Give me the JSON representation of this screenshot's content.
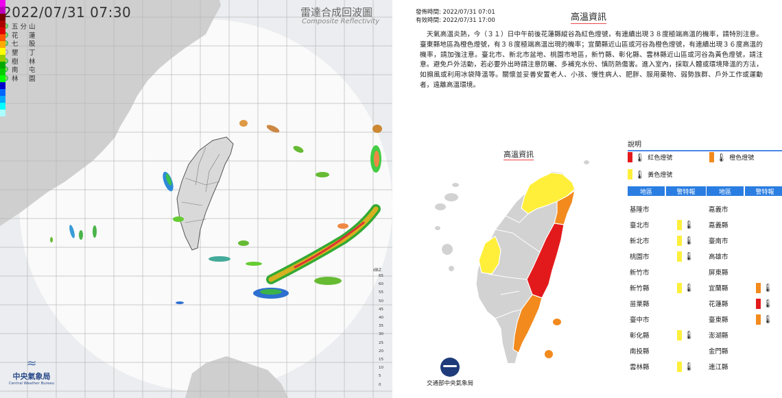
{
  "radar": {
    "datetime": "2022/07/31  07:30",
    "title": "雷達合成回波圖",
    "subtitle": "Composite Reflectivity",
    "sites": [
      {
        "a": "五",
        "b": "分",
        "c": "山",
        "active": true
      },
      {
        "a": "花",
        "b": "",
        "c": "蓮",
        "active": true
      },
      {
        "a": "七",
        "b": "",
        "c": "股",
        "active": true
      },
      {
        "a": "墾",
        "b": "",
        "c": "丁",
        "active": false
      },
      {
        "a": "樹",
        "b": "",
        "c": "林",
        "active": true
      },
      {
        "a": "南",
        "b": "",
        "c": "屯",
        "active": true
      },
      {
        "a": "林",
        "b": "",
        "c": "園",
        "active": true
      }
    ],
    "agency": "中央氣象局",
    "agency_en": "Central Weather Bureau",
    "colorbar_unit": "dBZ",
    "colorbar_ticks": [
      "65",
      "60",
      "55",
      "50",
      "45",
      "40",
      "35",
      "30",
      "25",
      "20",
      "15",
      "10",
      "5",
      "0"
    ]
  },
  "panel": {
    "issue_time": "發佈時間: 2022/07/31 07:01",
    "valid_time": "有效時間: 2022/07/31 17:00",
    "title": "高溫資訊",
    "bulletin": "天氣高溫炎熱，今（３１）日中午前後花蓮縣縱谷為紅色燈號，有連續出現３８度極端高溫的機率，請特別注意。臺東縣地區為橙色燈號，有３８度極端高溫出現的機率；宜蘭縣近山區或河谷為橙色燈號，有連續出現３６度高溫的機率，請加強注意。臺北市、新北市盆地、桃園市地區，新竹縣、彰化縣、雲林縣近山區或河谷為黃色燈號，請注意。避免戶外活動，若必要外出時請注意防曬、多補充水份、慎防熱傷害。進入室內，採取人體或環境降溫的方法，如搧風或利用冰袋降溫等。關懷並妥善安置老人、小孩、慢性病人、肥胖、服用藥物、弱勢族群、戶外工作或運動者，遠離高溫環境。",
    "map_title": "高溫資訊",
    "footer": "交通部中央氣象局",
    "legend": {
      "title": "說明",
      "red": "紅色燈號",
      "orange": "橙色燈號",
      "yellow": "黃色燈號",
      "header_area": "地區",
      "header_warn": "警特報"
    },
    "colors": {
      "red": "#e31a1c",
      "orange": "#f28a1e",
      "yellow": "#ffef3a",
      "gray": "#d2d2d2",
      "blue": "#2a7de1"
    },
    "left_rows": [
      {
        "area": "基隆市",
        "level": ""
      },
      {
        "area": "臺北市",
        "level": "yellow"
      },
      {
        "area": "新北市",
        "level": "yellow"
      },
      {
        "area": "桃園市",
        "level": "yellow"
      },
      {
        "area": "新竹市",
        "level": ""
      },
      {
        "area": "新竹縣",
        "level": "yellow"
      },
      {
        "area": "苗栗縣",
        "level": ""
      },
      {
        "area": "臺中市",
        "level": ""
      },
      {
        "area": "彰化縣",
        "level": "yellow"
      },
      {
        "area": "南投縣",
        "level": ""
      },
      {
        "area": "雲林縣",
        "level": "yellow"
      }
    ],
    "right_rows": [
      {
        "area": "嘉義市",
        "level": ""
      },
      {
        "area": "嘉義縣",
        "level": ""
      },
      {
        "area": "臺南市",
        "level": ""
      },
      {
        "area": "高雄市",
        "level": ""
      },
      {
        "area": "屏東縣",
        "level": ""
      },
      {
        "area": "宜蘭縣",
        "level": "orange"
      },
      {
        "area": "花蓮縣",
        "level": "red"
      },
      {
        "area": "臺東縣",
        "level": "orange"
      },
      {
        "area": "澎湖縣",
        "level": ""
      },
      {
        "area": "金門縣",
        "level": ""
      },
      {
        "area": "連江縣",
        "level": ""
      }
    ]
  }
}
